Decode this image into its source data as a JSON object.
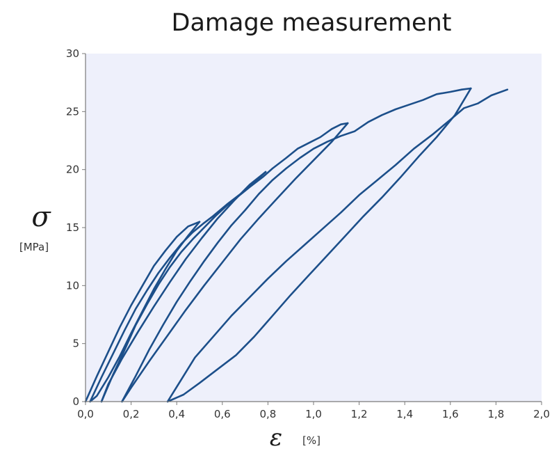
{
  "chart_data": {
    "type": "line",
    "title": "Damage measurement",
    "ylabel": "σ",
    "yunit": "[MPa]",
    "xlabel": "ε",
    "xunit": "[%]",
    "xlim": [
      0.0,
      2.0
    ],
    "ylim": [
      0,
      30
    ],
    "x_ticks": [
      "0,0",
      "0,2",
      "0,4",
      "0,6",
      "0,8",
      "1,0",
      "1,2",
      "1,4",
      "1,6",
      "1,8",
      "2,0"
    ],
    "y_ticks": [
      "0",
      "5",
      "10",
      "15",
      "20",
      "25",
      "30"
    ],
    "grid": false,
    "legend": "none",
    "colors": {
      "line": "#1c4f8a",
      "plot_bg": "#eef0fb",
      "axis": "#7a7a7a"
    },
    "series": [
      {
        "values": [
          [
            0.0,
            0
          ],
          [
            0.05,
            2.2
          ],
          [
            0.1,
            4.3
          ],
          [
            0.15,
            6.4
          ],
          [
            0.2,
            8.3
          ],
          [
            0.25,
            10.0
          ],
          [
            0.3,
            11.7
          ],
          [
            0.35,
            13.0
          ],
          [
            0.4,
            14.2
          ],
          [
            0.45,
            15.1
          ],
          [
            0.5,
            15.5
          ]
        ]
      },
      {
        "values": [
          [
            0.5,
            15.5
          ],
          [
            0.45,
            14.3
          ],
          [
            0.4,
            13.0
          ],
          [
            0.35,
            11.4
          ],
          [
            0.3,
            9.7
          ],
          [
            0.25,
            7.8
          ],
          [
            0.2,
            5.9
          ],
          [
            0.15,
            3.9
          ],
          [
            0.1,
            2.1
          ],
          [
            0.05,
            0.5
          ],
          [
            0.02,
            0
          ]
        ]
      },
      {
        "values": [
          [
            0.02,
            0
          ],
          [
            0.07,
            2.1
          ],
          [
            0.12,
            4.1
          ],
          [
            0.17,
            6.1
          ],
          [
            0.22,
            8.0
          ],
          [
            0.27,
            9.6
          ],
          [
            0.32,
            11.1
          ],
          [
            0.37,
            12.4
          ],
          [
            0.42,
            13.6
          ],
          [
            0.47,
            14.6
          ],
          [
            0.52,
            15.4
          ],
          [
            0.56,
            16.0
          ],
          [
            0.62,
            17.0
          ],
          [
            0.68,
            17.9
          ],
          [
            0.74,
            18.9
          ],
          [
            0.79,
            19.8
          ]
        ]
      },
      {
        "values": [
          [
            0.79,
            19.8
          ],
          [
            0.72,
            18.7
          ],
          [
            0.65,
            17.3
          ],
          [
            0.58,
            15.8
          ],
          [
            0.51,
            14.1
          ],
          [
            0.44,
            12.3
          ],
          [
            0.37,
            10.3
          ],
          [
            0.3,
            8.2
          ],
          [
            0.23,
            6.0
          ],
          [
            0.16,
            3.7
          ],
          [
            0.1,
            1.5
          ],
          [
            0.07,
            0
          ]
        ]
      },
      {
        "values": [
          [
            0.07,
            0
          ],
          [
            0.12,
            2.3
          ],
          [
            0.17,
            4.4
          ],
          [
            0.22,
            6.6
          ],
          [
            0.27,
            8.4
          ],
          [
            0.32,
            10.1
          ],
          [
            0.37,
            11.6
          ],
          [
            0.42,
            12.9
          ],
          [
            0.47,
            14.0
          ],
          [
            0.52,
            15.0
          ],
          [
            0.57,
            16.0
          ],
          [
            0.62,
            16.9
          ],
          [
            0.67,
            17.7
          ],
          [
            0.72,
            18.5
          ],
          [
            0.78,
            19.4
          ],
          [
            0.82,
            20.1
          ],
          [
            0.88,
            21.0
          ],
          [
            0.93,
            21.8
          ],
          [
            0.98,
            22.3
          ],
          [
            1.03,
            22.8
          ],
          [
            1.08,
            23.5
          ],
          [
            1.12,
            23.9
          ],
          [
            1.15,
            24.0
          ]
        ]
      },
      {
        "values": [
          [
            1.15,
            24.0
          ],
          [
            1.08,
            22.4
          ],
          [
            1.0,
            20.8
          ],
          [
            0.92,
            19.2
          ],
          [
            0.84,
            17.5
          ],
          [
            0.76,
            15.8
          ],
          [
            0.68,
            14.0
          ],
          [
            0.6,
            12.0
          ],
          [
            0.52,
            10.0
          ],
          [
            0.44,
            7.9
          ],
          [
            0.36,
            5.7
          ],
          [
            0.28,
            3.5
          ],
          [
            0.2,
            1.2
          ],
          [
            0.16,
            0
          ]
        ]
      },
      {
        "values": [
          [
            0.16,
            0
          ],
          [
            0.22,
            2.2
          ],
          [
            0.28,
            4.5
          ],
          [
            0.34,
            6.6
          ],
          [
            0.4,
            8.6
          ],
          [
            0.46,
            10.4
          ],
          [
            0.52,
            12.1
          ],
          [
            0.58,
            13.7
          ],
          [
            0.64,
            15.2
          ],
          [
            0.7,
            16.5
          ],
          [
            0.76,
            17.9
          ],
          [
            0.82,
            19.1
          ],
          [
            0.88,
            20.1
          ],
          [
            0.94,
            21.0
          ],
          [
            1.0,
            21.8
          ],
          [
            1.06,
            22.4
          ],
          [
            1.12,
            22.9
          ],
          [
            1.18,
            23.3
          ],
          [
            1.24,
            24.1
          ],
          [
            1.3,
            24.7
          ],
          [
            1.36,
            25.2
          ],
          [
            1.42,
            25.6
          ],
          [
            1.48,
            26.0
          ],
          [
            1.54,
            26.5
          ],
          [
            1.6,
            26.7
          ],
          [
            1.65,
            26.9
          ],
          [
            1.69,
            27.0
          ]
        ]
      },
      {
        "values": [
          [
            1.69,
            27.0
          ],
          [
            1.62,
            24.7
          ],
          [
            1.54,
            22.8
          ],
          [
            1.46,
            21.1
          ],
          [
            1.38,
            19.3
          ],
          [
            1.3,
            17.6
          ],
          [
            1.22,
            16.0
          ],
          [
            1.14,
            14.3
          ],
          [
            1.06,
            12.6
          ],
          [
            0.98,
            10.9
          ],
          [
            0.9,
            9.2
          ],
          [
            0.82,
            7.4
          ],
          [
            0.74,
            5.6
          ],
          [
            0.66,
            4.0
          ],
          [
            0.58,
            2.8
          ],
          [
            0.5,
            1.6
          ],
          [
            0.43,
            0.6
          ],
          [
            0.36,
            0
          ]
        ]
      },
      {
        "values": [
          [
            0.36,
            0
          ],
          [
            0.42,
            1.9
          ],
          [
            0.48,
            3.8
          ],
          [
            0.56,
            5.6
          ],
          [
            0.64,
            7.4
          ],
          [
            0.72,
            9.0
          ],
          [
            0.8,
            10.6
          ],
          [
            0.88,
            12.1
          ],
          [
            0.96,
            13.5
          ],
          [
            1.04,
            14.9
          ],
          [
            1.12,
            16.3
          ],
          [
            1.2,
            17.8
          ],
          [
            1.28,
            19.1
          ],
          [
            1.36,
            20.4
          ],
          [
            1.44,
            21.8
          ],
          [
            1.52,
            23.0
          ],
          [
            1.6,
            24.3
          ],
          [
            1.66,
            25.3
          ],
          [
            1.72,
            25.7
          ],
          [
            1.78,
            26.4
          ],
          [
            1.85,
            26.9
          ]
        ]
      }
    ]
  }
}
